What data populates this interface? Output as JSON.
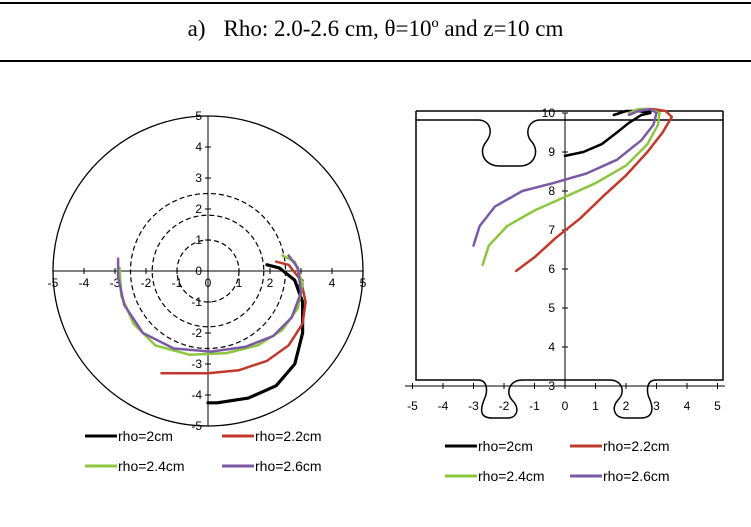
{
  "caption": {
    "letter": "a)",
    "text": "Rho: 2.0-2.6 cm, θ=10º and z=10 cm"
  },
  "colors": {
    "rho_2": "#000000",
    "rho_2_2": "#c0392b",
    "rho_2_4": "#8cc63f",
    "rho_2_6": "#7b59a6"
  },
  "chart_data": [
    {
      "type": "line",
      "xlim": [
        -5,
        5
      ],
      "ylim": [
        -5,
        5
      ],
      "x_ticks": [
        "-5",
        "-4",
        "-3",
        "-2",
        "-1",
        "0",
        "1",
        "2",
        "3",
        "4",
        "5"
      ],
      "y_ticks": [
        "-5",
        "-4",
        "-3",
        "-2",
        "-1",
        "0",
        "1",
        "2",
        "3",
        "4",
        "5"
      ],
      "reference_circles": [
        {
          "radius": 1.0,
          "style": "dashed"
        },
        {
          "radius": 1.8,
          "style": "dashed"
        },
        {
          "radius": 2.5,
          "style": "dashed"
        },
        {
          "radius": 5.0,
          "style": "solid"
        }
      ],
      "legend": {
        "position": "bottom"
      },
      "series": [
        {
          "name": "rho=2cm",
          "color": "#000000",
          "x": [
            1.9,
            2.3,
            2.8,
            3.05,
            3.05,
            2.8,
            2.2,
            1.3,
            0.3,
            0.0
          ],
          "y": [
            0.2,
            0.1,
            -0.3,
            -1.0,
            -2.0,
            -3.0,
            -3.7,
            -4.1,
            -4.25,
            -4.25
          ]
        },
        {
          "name": "rho=2.2cm",
          "color": "#c0392b",
          "x": [
            2.2,
            2.6,
            3.0,
            3.15,
            3.05,
            2.6,
            1.9,
            1.0,
            0.0,
            -1.0,
            -1.5
          ],
          "y": [
            0.3,
            0.2,
            -0.3,
            -1.0,
            -1.7,
            -2.4,
            -2.9,
            -3.2,
            -3.3,
            -3.3,
            -3.3
          ]
        },
        {
          "name": "rho=2.4cm",
          "color": "#8cc63f",
          "x": [
            2.4,
            2.8,
            3.05,
            2.9,
            2.4,
            1.6,
            0.6,
            -0.6,
            -1.7,
            -2.4,
            -2.8,
            -2.85
          ],
          "y": [
            0.5,
            0.3,
            -0.4,
            -1.2,
            -1.9,
            -2.4,
            -2.65,
            -2.7,
            -2.4,
            -1.7,
            -0.8,
            0.1
          ]
        },
        {
          "name": "rho=2.6cm",
          "color": "#7b59a6",
          "x": [
            2.6,
            2.9,
            3.0,
            2.7,
            2.1,
            1.2,
            0.1,
            -1.1,
            -2.1,
            -2.7,
            -2.9,
            -2.9
          ],
          "y": [
            0.5,
            0.1,
            -0.7,
            -1.5,
            -2.1,
            -2.45,
            -2.6,
            -2.5,
            -2.0,
            -1.1,
            -0.2,
            0.4
          ]
        }
      ]
    },
    {
      "type": "line",
      "xlim": [
        -5,
        5
      ],
      "ylim": [
        3,
        10
      ],
      "x_ticks": [
        "-5",
        "-4",
        "-3",
        "-2",
        "-1",
        "0",
        "1",
        "2",
        "3",
        "4",
        "5"
      ],
      "y_ticks": [
        "3",
        "4",
        "5",
        "6",
        "7",
        "8",
        "9",
        "10"
      ],
      "legend": {
        "position": "bottom"
      },
      "series": [
        {
          "name": "rho=2cm",
          "color": "#000000",
          "x": [
            0.0,
            0.6,
            1.2,
            1.7,
            2.1,
            2.5,
            2.8,
            2.4,
            2.0,
            1.6
          ],
          "y": [
            8.9,
            9.0,
            9.2,
            9.5,
            9.75,
            9.95,
            10.0,
            10.05,
            10.05,
            9.95
          ]
        },
        {
          "name": "rho=2.2cm",
          "color": "#c0392b",
          "x": [
            -1.6,
            -1.0,
            -0.3,
            0.5,
            1.3,
            2.0,
            2.7,
            3.2,
            3.5,
            3.3,
            2.9,
            2.5,
            2.1
          ],
          "y": [
            5.95,
            6.3,
            6.8,
            7.3,
            7.9,
            8.4,
            9.0,
            9.5,
            9.9,
            10.05,
            10.1,
            10.1,
            10.0
          ]
        },
        {
          "name": "rho=2.4cm",
          "color": "#8cc63f",
          "x": [
            -2.7,
            -2.5,
            -1.9,
            -1.0,
            0.0,
            1.0,
            2.0,
            2.7,
            3.05,
            3.1,
            2.8,
            2.4,
            2.1
          ],
          "y": [
            6.1,
            6.6,
            7.1,
            7.5,
            7.85,
            8.2,
            8.65,
            9.2,
            9.7,
            10.0,
            10.1,
            10.1,
            10.0
          ]
        },
        {
          "name": "rho=2.6cm",
          "color": "#7b59a6",
          "x": [
            -3.0,
            -2.8,
            -2.3,
            -1.4,
            -0.4,
            0.7,
            1.7,
            2.5,
            2.9,
            3.0,
            2.8,
            2.4,
            2.1
          ],
          "y": [
            6.6,
            7.1,
            7.6,
            8.0,
            8.2,
            8.45,
            8.8,
            9.3,
            9.7,
            10.0,
            10.1,
            10.05,
            9.95
          ]
        }
      ]
    }
  ]
}
